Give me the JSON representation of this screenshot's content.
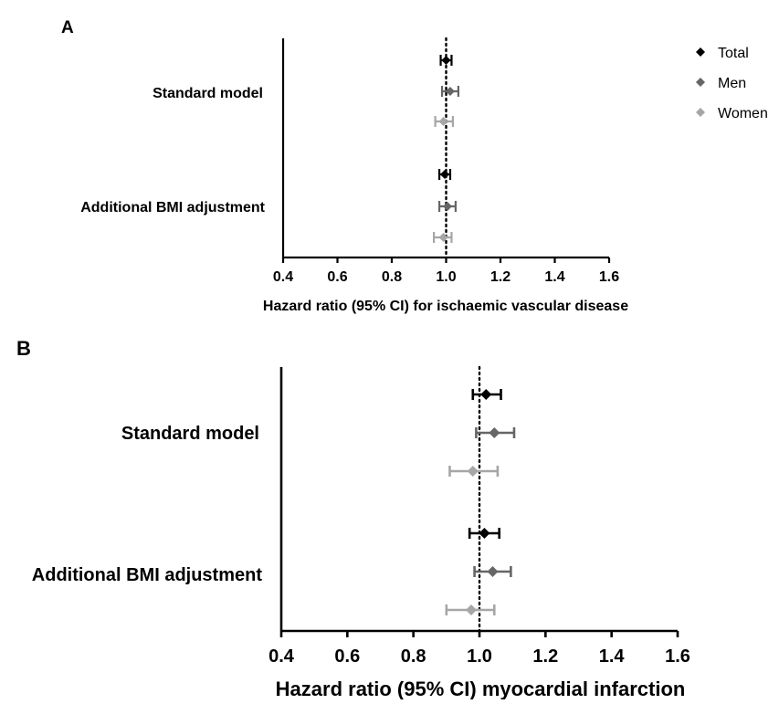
{
  "chart_data": [
    {
      "type": "forest",
      "panel_label": "A",
      "xlabel": "Hazard ratio (95% CI) for ischaemic vascular disease",
      "xlim": [
        0.4,
        1.6
      ],
      "xticks": [
        "0.4",
        "0.6",
        "0.8",
        "1.0",
        "1.2",
        "1.4",
        "1.6"
      ],
      "reference_line": 1.0,
      "categories": [
        "Standard model",
        "Additional BMI adjustment"
      ],
      "series": [
        {
          "name": "Total",
          "color": "#000000",
          "points": [
            {
              "est": 1.0,
              "lo": 0.98,
              "hi": 1.02
            },
            {
              "est": 0.995,
              "lo": 0.975,
              "hi": 1.015
            }
          ]
        },
        {
          "name": "Men",
          "color": "#666666",
          "points": [
            {
              "est": 1.015,
              "lo": 0.985,
              "hi": 1.045
            },
            {
              "est": 1.005,
              "lo": 0.975,
              "hi": 1.035
            }
          ]
        },
        {
          "name": "Women",
          "color": "#a6a6a6",
          "points": [
            {
              "est": 0.99,
              "lo": 0.96,
              "hi": 1.025
            },
            {
              "est": 0.99,
              "lo": 0.955,
              "hi": 1.02
            }
          ]
        }
      ],
      "legend": {
        "placement": "top-right",
        "entries": [
          "Total",
          "Men",
          "Women"
        ]
      }
    },
    {
      "type": "forest",
      "panel_label": "B",
      "xlabel": "Hazard ratio (95% CI) myocardial infarction",
      "xlim": [
        0.4,
        1.6
      ],
      "xticks": [
        "0.4",
        "0.6",
        "0.8",
        "1.0",
        "1.2",
        "1.4",
        "1.6"
      ],
      "reference_line": 1.0,
      "categories": [
        "Standard model",
        "Additional BMI adjustment"
      ],
      "series": [
        {
          "name": "Total",
          "color": "#000000",
          "points": [
            {
              "est": 1.02,
              "lo": 0.98,
              "hi": 1.065
            },
            {
              "est": 1.015,
              "lo": 0.97,
              "hi": 1.06
            }
          ]
        },
        {
          "name": "Men",
          "color": "#666666",
          "points": [
            {
              "est": 1.045,
              "lo": 0.99,
              "hi": 1.105
            },
            {
              "est": 1.04,
              "lo": 0.985,
              "hi": 1.095
            }
          ]
        },
        {
          "name": "Women",
          "color": "#a6a6a6",
          "points": [
            {
              "est": 0.98,
              "lo": 0.91,
              "hi": 1.055
            },
            {
              "est": 0.975,
              "lo": 0.9,
              "hi": 1.045
            }
          ]
        }
      ]
    }
  ]
}
